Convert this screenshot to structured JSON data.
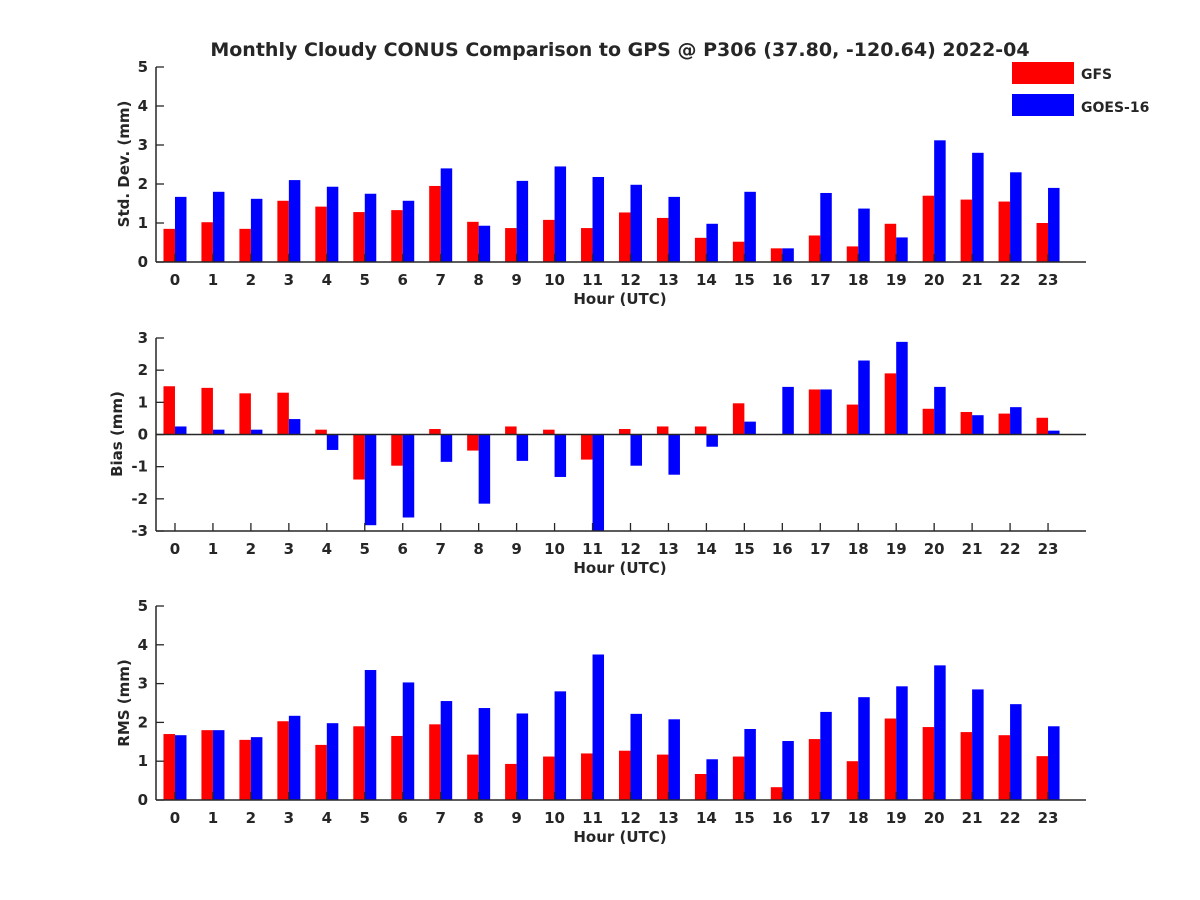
{
  "title": "Monthly Cloudy CONUS Comparison to GPS @ P306 (37.80, -120.64) 2022-04",
  "legend": [
    {
      "label": "GFS",
      "color": "#ff0000"
    },
    {
      "label": "GOES-16",
      "color": "#0000ff"
    }
  ],
  "chart_data": [
    {
      "type": "bar",
      "ylabel": "Std. Dev. (mm)",
      "xlabel": "Hour (UTC)",
      "ylim": [
        0,
        5
      ],
      "yticks": [
        0,
        1,
        2,
        3,
        4,
        5
      ],
      "categories": [
        "0",
        "1",
        "2",
        "3",
        "4",
        "5",
        "6",
        "7",
        "8",
        "9",
        "10",
        "11",
        "12",
        "13",
        "14",
        "15",
        "16",
        "17",
        "18",
        "19",
        "20",
        "21",
        "22",
        "23"
      ],
      "series": [
        {
          "name": "GFS",
          "color": "#ff0000",
          "values": [
            0.85,
            1.02,
            0.85,
            1.57,
            1.42,
            1.28,
            1.33,
            1.95,
            1.03,
            0.87,
            1.08,
            0.87,
            1.27,
            1.13,
            0.62,
            0.52,
            0.35,
            0.68,
            0.4,
            0.98,
            1.7,
            1.6,
            1.55,
            1.0
          ]
        },
        {
          "name": "GOES-16",
          "color": "#0000ff",
          "values": [
            1.67,
            1.8,
            1.62,
            2.1,
            1.93,
            1.75,
            1.57,
            2.4,
            0.93,
            2.08,
            2.45,
            2.18,
            1.98,
            1.67,
            0.98,
            1.8,
            0.35,
            1.77,
            1.37,
            0.63,
            3.12,
            2.8,
            2.3,
            1.9
          ]
        }
      ]
    },
    {
      "type": "bar",
      "ylabel": "Bias (mm)",
      "xlabel": "Hour (UTC)",
      "ylim": [
        -3,
        3
      ],
      "yticks": [
        -3,
        -2,
        -1,
        0,
        1,
        2,
        3
      ],
      "zero_line": true,
      "categories": [
        "0",
        "1",
        "2",
        "3",
        "4",
        "5",
        "6",
        "7",
        "8",
        "9",
        "10",
        "11",
        "12",
        "13",
        "14",
        "15",
        "16",
        "17",
        "18",
        "19",
        "20",
        "21",
        "22",
        "23"
      ],
      "series": [
        {
          "name": "GFS",
          "color": "#ff0000",
          "values": [
            1.5,
            1.45,
            1.28,
            1.3,
            0.15,
            -1.4,
            -0.97,
            0.17,
            -0.5,
            0.25,
            0.15,
            -0.78,
            0.17,
            0.25,
            0.25,
            0.97,
            0.0,
            1.4,
            0.93,
            1.9,
            0.8,
            0.7,
            0.65,
            0.52
          ]
        },
        {
          "name": "GOES-16",
          "color": "#0000ff",
          "values": [
            0.25,
            0.15,
            0.15,
            0.48,
            -0.48,
            -2.82,
            -2.58,
            -0.85,
            -2.15,
            -0.82,
            -1.32,
            -3.0,
            -0.97,
            -1.25,
            -0.38,
            0.4,
            1.48,
            1.4,
            2.3,
            2.88,
            1.48,
            0.6,
            0.85,
            0.12
          ]
        }
      ]
    },
    {
      "type": "bar",
      "ylabel": "RMS (mm)",
      "xlabel": "Hour (UTC)",
      "ylim": [
        0,
        5
      ],
      "yticks": [
        0,
        1,
        2,
        3,
        4,
        5
      ],
      "categories": [
        "0",
        "1",
        "2",
        "3",
        "4",
        "5",
        "6",
        "7",
        "8",
        "9",
        "10",
        "11",
        "12",
        "13",
        "14",
        "15",
        "16",
        "17",
        "18",
        "19",
        "20",
        "21",
        "22",
        "23"
      ],
      "series": [
        {
          "name": "GFS",
          "color": "#ff0000",
          "values": [
            1.7,
            1.8,
            1.55,
            2.03,
            1.42,
            1.9,
            1.65,
            1.95,
            1.17,
            0.93,
            1.12,
            1.2,
            1.27,
            1.17,
            0.67,
            1.12,
            0.33,
            1.57,
            1.0,
            2.1,
            1.88,
            1.75,
            1.67,
            1.13
          ]
        },
        {
          "name": "GOES-16",
          "color": "#0000ff",
          "values": [
            1.67,
            1.8,
            1.62,
            2.17,
            1.98,
            3.35,
            3.03,
            2.55,
            2.37,
            2.23,
            2.8,
            3.75,
            2.22,
            2.08,
            1.05,
            1.83,
            1.52,
            2.27,
            2.65,
            2.93,
            3.47,
            2.85,
            2.47,
            1.9
          ]
        }
      ]
    }
  ]
}
